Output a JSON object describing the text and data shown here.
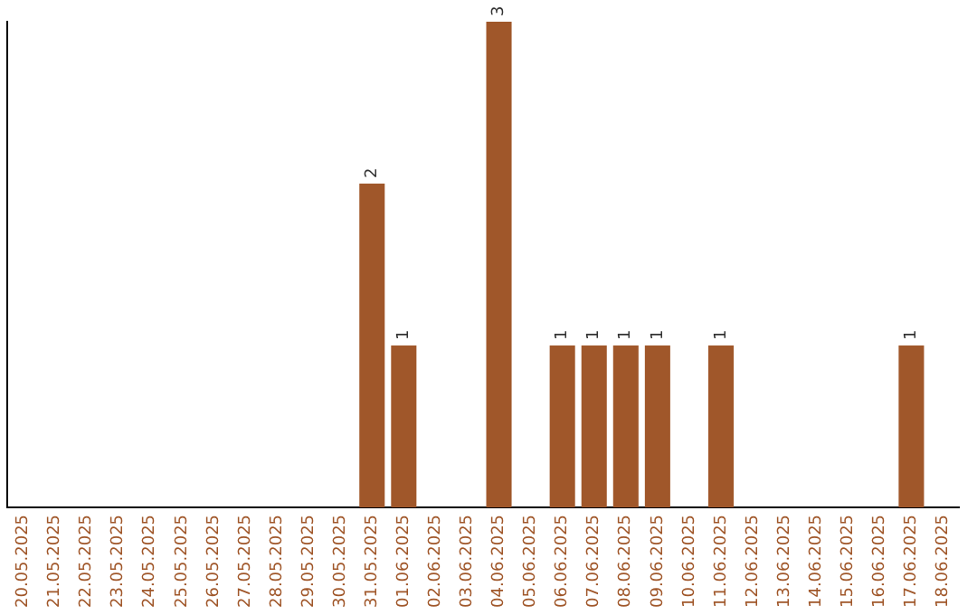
{
  "chart_data": {
    "type": "bar",
    "categories": [
      "20.05.2025",
      "21.05.2025",
      "22.05.2025",
      "23.05.2025",
      "24.05.2025",
      "25.05.2025",
      "26.05.2025",
      "27.05.2025",
      "28.05.2025",
      "29.05.2025",
      "30.05.2025",
      "31.05.2025",
      "01.06.2025",
      "02.06.2025",
      "03.06.2025",
      "04.06.2025",
      "05.06.2025",
      "06.06.2025",
      "07.06.2025",
      "08.06.2025",
      "09.06.2025",
      "10.06.2025",
      "11.06.2025",
      "12.06.2025",
      "13.06.2025",
      "14.06.2025",
      "15.06.2025",
      "16.06.2025",
      "17.06.2025",
      "18.06.2025"
    ],
    "values": [
      0,
      0,
      0,
      0,
      0,
      0,
      0,
      0,
      0,
      0,
      0,
      2,
      1,
      0,
      0,
      3,
      0,
      1,
      1,
      1,
      1,
      0,
      1,
      0,
      0,
      0,
      0,
      0,
      1,
      0
    ],
    "value_labels": [
      null,
      null,
      null,
      null,
      null,
      null,
      null,
      null,
      null,
      null,
      null,
      "2",
      "1",
      null,
      null,
      "3",
      null,
      "1",
      "1",
      "1",
      "1",
      null,
      "1",
      null,
      null,
      null,
      null,
      null,
      "1",
      null
    ],
    "color": "#a0572a",
    "tick_labels": "x",
    "grid": false,
    "legend": false
  }
}
